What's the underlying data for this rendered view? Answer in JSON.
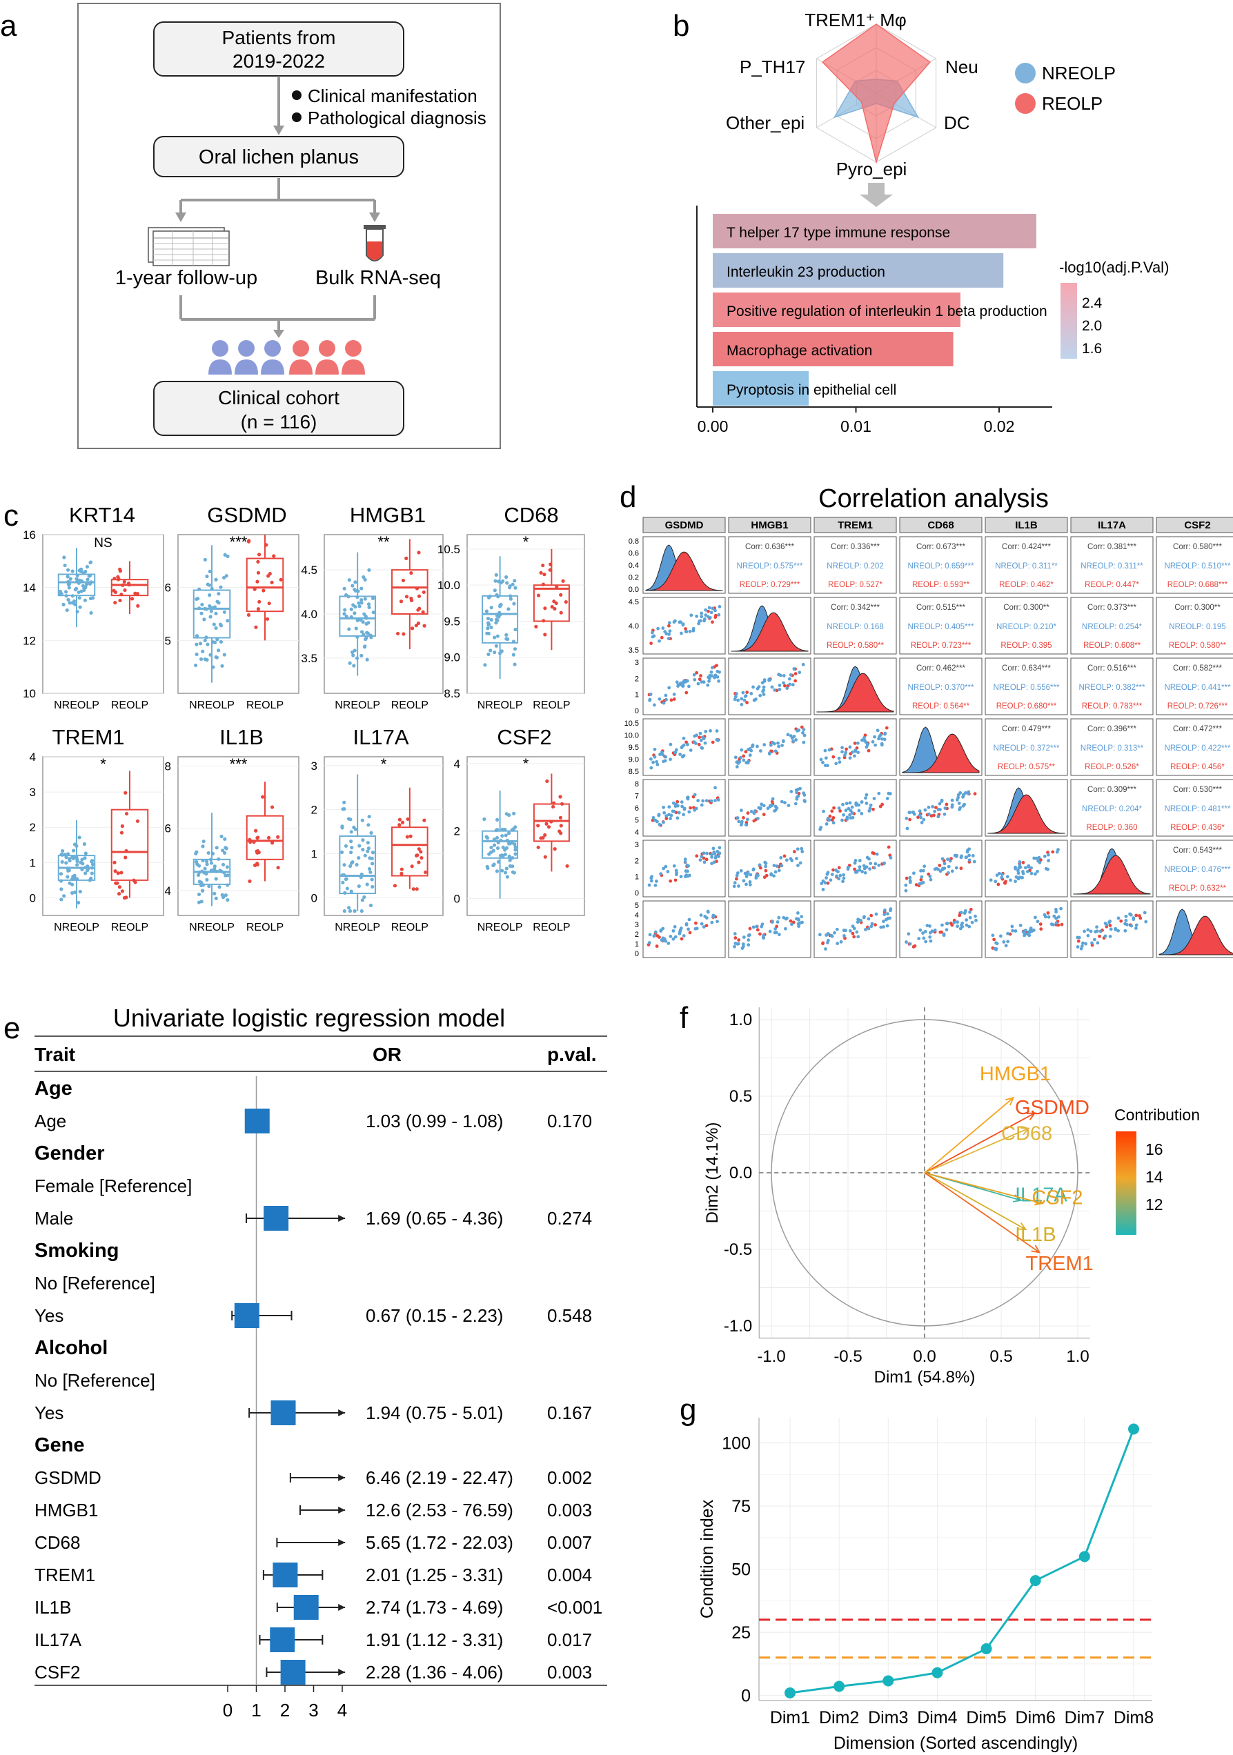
{
  "panel_labels": {
    "a": "a",
    "b": "b",
    "c": "c",
    "d": "d",
    "e": "e",
    "f": "f",
    "g": "g"
  },
  "flow": {
    "box1": [
      "Patients  from",
      "2019-2022"
    ],
    "bullets": [
      "Clinical manifestation",
      "Pathological diagnosis"
    ],
    "box2": "Oral lichen planus",
    "followup": "1-year  follow-up",
    "bulk": "Bulk RNA-seq",
    "box3": [
      "Clinical cohort",
      "(n = 116)"
    ],
    "colors": {
      "blue": "#8B9BD9",
      "red": "#F07373"
    }
  },
  "radar": {
    "axes": [
      "TREM1⁺ Mφ",
      "Neu",
      "DC",
      "Pyro_epi",
      "Other_epi",
      "P_TH17"
    ],
    "legend": [
      {
        "name": "NREOLP",
        "color": "#7FB3DB"
      },
      {
        "name": "REOLP",
        "color": "#F26B6B"
      }
    ],
    "NREOLP": [
      0.2,
      0.35,
      0.7,
      0.15,
      0.7,
      0.35
    ],
    "REOLP": [
      1.0,
      0.9,
      0.3,
      1.0,
      0.25,
      0.9
    ]
  },
  "chart_data": [
    {
      "id": "b",
      "type": "bar",
      "orientation": "horizontal",
      "categories": [
        "T helper 17 type immune response",
        "Interleukin 23 production",
        "Positive regulation of interleukin 1 beta production",
        "Macrophage activation",
        "Pyroptosis in epithelial cell"
      ],
      "values": [
        0.0226,
        0.0203,
        0.0173,
        0.0168,
        0.0067
      ],
      "fill": [
        "#D4A3B0",
        "#A9BCD8",
        "#EE8A8F",
        "#EC7C80",
        "#93C4E6"
      ],
      "xlim": [
        0,
        0.025
      ],
      "xticks": [
        "0.00",
        "0.01",
        "0.02"
      ],
      "legend_title": "-log10(adj.P.Val)",
      "legend_ticks": [
        "2.4",
        "2.0",
        "1.6"
      ]
    },
    {
      "id": "c",
      "type": "boxplot",
      "groups": [
        "NREOLP",
        "REOLP"
      ],
      "colors": {
        "NREOLP": "#6BAED6",
        "REOLP": "#E8453C"
      },
      "genes": [
        {
          "name": "KRT14",
          "sig": "NS",
          "ylim": [
            10,
            16
          ],
          "yticks": [
            "10",
            "12",
            "14",
            "16"
          ],
          "nre": {
            "q1": 13.7,
            "med": 14.2,
            "q3": 14.5,
            "lo": 12.5,
            "hi": 15.5
          },
          "re": {
            "q1": 13.7,
            "med": 14.1,
            "q3": 14.3,
            "lo": 13.0,
            "hi": 15.0
          }
        },
        {
          "name": "GSDMD",
          "sig": "***",
          "ylim": [
            4,
            7
          ],
          "yticks": [
            "5",
            "6"
          ],
          "nre": {
            "q1": 5.05,
            "med": 5.6,
            "q3": 5.95,
            "lo": 4.2,
            "hi": 6.8
          },
          "re": {
            "q1": 5.55,
            "med": 6.0,
            "q3": 6.55,
            "lo": 5.0,
            "hi": 7.0
          }
        },
        {
          "name": "HMGB1",
          "sig": "**",
          "ylim": [
            3.1,
            4.9
          ],
          "yticks": [
            "3.5",
            "4.0",
            "4.5"
          ],
          "nre": {
            "q1": 3.75,
            "med": 3.95,
            "q3": 4.2,
            "lo": 3.3,
            "hi": 4.7
          },
          "re": {
            "q1": 4.0,
            "med": 4.3,
            "q3": 4.5,
            "lo": 3.6,
            "hi": 4.85
          }
        },
        {
          "name": "CD68",
          "sig": "*",
          "ylim": [
            8.5,
            10.7
          ],
          "yticks": [
            "8.5",
            "9.0",
            "9.5",
            "10.0",
            "10.5"
          ],
          "nre": {
            "q1": 9.2,
            "med": 9.6,
            "q3": 9.85,
            "lo": 8.7,
            "hi": 10.4
          },
          "re": {
            "q1": 9.5,
            "med": 9.95,
            "q3": 10.0,
            "lo": 9.1,
            "hi": 10.5
          }
        },
        {
          "name": "TREM1",
          "sig": "*",
          "ylim": [
            -0.5,
            4
          ],
          "yticks": [
            "0",
            "1",
            "2",
            "3",
            "4"
          ],
          "nre": {
            "q1": 0.5,
            "med": 0.85,
            "q3": 1.2,
            "lo": -0.3,
            "hi": 2.2
          },
          "re": {
            "q1": 0.5,
            "med": 1.3,
            "q3": 2.5,
            "lo": 0,
            "hi": 3.6
          }
        },
        {
          "name": "IL1B",
          "sig": "***",
          "ylim": [
            3.2,
            8.3
          ],
          "yticks": [
            "4",
            "6",
            "8"
          ],
          "nre": {
            "q1": 4.2,
            "med": 4.6,
            "q3": 5.0,
            "lo": 3.5,
            "hi": 6.5
          },
          "re": {
            "q1": 5.0,
            "med": 5.6,
            "q3": 6.4,
            "lo": 4.3,
            "hi": 7.5
          }
        },
        {
          "name": "IL17A",
          "sig": "*",
          "ylim": [
            -0.4,
            3.2
          ],
          "yticks": [
            "0",
            "1",
            "2",
            "3"
          ],
          "nre": {
            "q1": 0.1,
            "med": 0.5,
            "q3": 1.4,
            "lo": -0.3,
            "hi": 2.8
          },
          "re": {
            "q1": 0.5,
            "med": 1.2,
            "q3": 1.6,
            "lo": 0.2,
            "hi": 2.5
          }
        },
        {
          "name": "CSF2",
          "sig": "*",
          "ylim": [
            -0.5,
            4.2
          ],
          "yticks": [
            "0",
            "2",
            "4"
          ],
          "nre": {
            "q1": 1.2,
            "med": 1.7,
            "q3": 2.0,
            "lo": 0,
            "hi": 3.2
          },
          "re": {
            "q1": 1.7,
            "med": 2.3,
            "q3": 2.8,
            "lo": 0.8,
            "hi": 3.7
          }
        }
      ]
    },
    {
      "id": "d",
      "type": "correlation_matrix",
      "title": "Correlation analysis",
      "vars": [
        "GSDMD",
        "HMGB1",
        "TREM1",
        "CD68",
        "IL1B",
        "IL17A",
        "CSF2"
      ],
      "corr": {
        "0-1": [
          "Corr: 0.636***",
          "NREOLP: 0.575***",
          "REOLP: 0.729***"
        ],
        "0-2": [
          "Corr: 0.336***",
          "NREOLP: 0.202",
          "REOLP: 0.527*"
        ],
        "0-3": [
          "Corr: 0.673***",
          "NREOLP: 0.659***",
          "REOLP: 0.593**"
        ],
        "0-4": [
          "Corr: 0.424***",
          "NREOLP: 0.311**",
          "REOLP: 0.462*"
        ],
        "0-5": [
          "Corr: 0.381***",
          "NREOLP: 0.311**",
          "REOLP: 0.447*"
        ],
        "0-6": [
          "Corr: 0.580***",
          "NREOLP: 0.510***",
          "REOLP: 0.688***"
        ],
        "1-2": [
          "Corr: 0.342***",
          "NREOLP: 0.168",
          "REOLP: 0.580**"
        ],
        "1-3": [
          "Corr: 0.515***",
          "NREOLP: 0.405***",
          "REOLP: 0.723***"
        ],
        "1-4": [
          "Corr: 0.300**",
          "NREOLP: 0.210*",
          "REOLP: 0.395"
        ],
        "1-5": [
          "Corr: 0.373***",
          "NREOLP: 0.254*",
          "REOLP: 0.608**"
        ],
        "1-6": [
          "Corr: 0.300**",
          "NREOLP: 0.195",
          "REOLP: 0.580**"
        ],
        "2-3": [
          "Corr: 0.462***",
          "NREOLP: 0.370***",
          "REOLP: 0.564**"
        ],
        "2-4": [
          "Corr: 0.634***",
          "NREOLP: 0.556***",
          "REOLP: 0.680***"
        ],
        "2-5": [
          "Corr: 0.516***",
          "NREOLP: 0.382***",
          "REOLP: 0.783***"
        ],
        "2-6": [
          "Corr: 0.582***",
          "NREOLP: 0.441***",
          "REOLP: 0.726***"
        ],
        "3-4": [
          "Corr: 0.479***",
          "NREOLP: 0.372***",
          "REOLP: 0.575**"
        ],
        "3-5": [
          "Corr: 0.396***",
          "NREOLP: 0.313**",
          "REOLP: 0.526*"
        ],
        "3-6": [
          "Corr: 0.472***",
          "NREOLP: 0.422***",
          "REOLP: 0.456*"
        ],
        "4-5": [
          "Corr: 0.309***",
          "NREOLP: 0.204*",
          "REOLP: 0.360"
        ],
        "4-6": [
          "Corr: 0.530***",
          "NREOLP: 0.481***",
          "REOLP: 0.436*"
        ],
        "5-6": [
          "Corr: 0.543***",
          "NREOLP: 0.476***",
          "REOLP: 0.632**"
        ]
      },
      "yticks": [
        [
          "0.8",
          "0.6",
          "0.4",
          "0.2",
          "0.0"
        ],
        [
          "4.5",
          "4.0",
          "3.5"
        ],
        [
          "3",
          "2",
          "1",
          "0"
        ],
        [
          "10.5",
          "10.0",
          "9.5",
          "9.0",
          "8.5"
        ],
        [
          "8",
          "7",
          "6",
          "5",
          "4"
        ],
        [
          "3",
          "2",
          "1",
          "0"
        ],
        [
          "5",
          "4",
          "3",
          "2",
          "1",
          "0"
        ]
      ]
    },
    {
      "id": "e",
      "type": "forest",
      "title": "Univariate logistic regression model",
      "headers": {
        "trait": "Trait",
        "or": "OR",
        "p": "p.val."
      },
      "rows": [
        {
          "label": "Age",
          "bold": true
        },
        {
          "label": "Age",
          "or": 1.03,
          "lo": 0.99,
          "hi": 1.08,
          "text": "1.03 (0.99 - 1.08)",
          "p": "0.170",
          "size": 1.0
        },
        {
          "label": "Gender",
          "bold": true
        },
        {
          "label": "Female [Reference]"
        },
        {
          "label": "Male",
          "or": 1.69,
          "lo": 0.65,
          "hi": 4.36,
          "text": "1.69 (0.65 - 4.36)",
          "p": "0.274",
          "size": 1.0,
          "arrow": true
        },
        {
          "label": "Smoking",
          "bold": true
        },
        {
          "label": "No [Reference]"
        },
        {
          "label": "Yes",
          "or": 0.67,
          "lo": 0.15,
          "hi": 2.23,
          "text": "0.67 (0.15 - 2.23)",
          "p": "0.548",
          "size": 1.0
        },
        {
          "label": "Alcohol",
          "bold": true
        },
        {
          "label": "No [Reference]"
        },
        {
          "label": "Yes",
          "or": 1.94,
          "lo": 0.75,
          "hi": 5.01,
          "text": "1.94 (0.75 - 5.01)",
          "p": "0.167",
          "size": 1.0,
          "arrow": true
        },
        {
          "label": "Gene",
          "bold": true
        },
        {
          "label": "GSDMD",
          "or": 6.46,
          "lo": 2.19,
          "hi": 22.47,
          "text": "6.46 (2.19 - 22.47)",
          "p": "0.002",
          "size": 0,
          "arrow": true
        },
        {
          "label": "HMGB1",
          "or": 12.6,
          "lo": 2.53,
          "hi": 76.59,
          "text": "12.6 (2.53 - 76.59)",
          "p": "0.003",
          "size": 0,
          "arrow": true
        },
        {
          "label": "CD68",
          "or": 5.65,
          "lo": 1.72,
          "hi": 22.03,
          "text": "5.65 (1.72 - 22.03)",
          "p": "0.007",
          "size": 0,
          "arrow": true
        },
        {
          "label": "TREM1",
          "or": 2.01,
          "lo": 1.25,
          "hi": 3.31,
          "text": "2.01 (1.25 - 3.31)",
          "p": "0.004",
          "size": 1.0
        },
        {
          "label": "IL1B",
          "or": 2.74,
          "lo": 1.73,
          "hi": 4.69,
          "text": "2.74 (1.73 - 4.69)",
          "p": "<0.001",
          "size": 1.0,
          "arrow": true
        },
        {
          "label": "IL17A",
          "or": 1.91,
          "lo": 1.12,
          "hi": 3.31,
          "text": "1.91 (1.12 - 3.31)",
          "p": "0.017",
          "size": 1.0
        },
        {
          "label": "CSF2",
          "or": 2.28,
          "lo": 1.36,
          "hi": 4.06,
          "text": "2.28 (1.36 - 4.06)",
          "p": "0.003",
          "size": 1.0,
          "arrow": true
        }
      ],
      "xlim": [
        0,
        4
      ],
      "xticks": [
        "0",
        "1",
        "2",
        "3",
        "4"
      ]
    },
    {
      "id": "f",
      "type": "pca_biplot",
      "xlabel": "Dim1 (54.8%)",
      "ylabel": "Dim2 (14.1%)",
      "xlim": [
        -1.05,
        1.05
      ],
      "ylim": [
        -1.05,
        1.05
      ],
      "xticks": [
        "-1.0",
        "-0.5",
        "0.0",
        "0.5",
        "1.0"
      ],
      "yticks": [
        "1.0",
        "0.5",
        "0.0",
        "-0.5",
        "-1.0"
      ],
      "vectors": [
        {
          "name": "HMGB1",
          "x": 0.58,
          "y": 0.49,
          "color": "#F5A21D"
        },
        {
          "name": "GSDMD",
          "x": 0.72,
          "y": 0.39,
          "color": "#F24F1E"
        },
        {
          "name": "CD68",
          "x": 0.68,
          "y": 0.29,
          "color": "#E0B43A"
        },
        {
          "name": "IL17A",
          "x": 0.63,
          "y": -0.18,
          "color": "#3FB6A8"
        },
        {
          "name": "CSF2",
          "x": 0.77,
          "y": -0.2,
          "color": "#E8A21F"
        },
        {
          "name": "IL1B",
          "x": 0.66,
          "y": -0.37,
          "color": "#D6B028"
        },
        {
          "name": "TREM1",
          "x": 0.75,
          "y": -0.52,
          "color": "#F06A20"
        }
      ],
      "legend_title": "Contribution",
      "legend_ticks": [
        "16",
        "14",
        "12"
      ]
    },
    {
      "id": "g",
      "type": "line",
      "categories": [
        "Dim1",
        "Dim2",
        "Dim3",
        "Dim4",
        "Dim5",
        "Dim6",
        "Dim7",
        "Dim8"
      ],
      "values": [
        1.0,
        3.6,
        5.8,
        9.0,
        18.5,
        45.5,
        55.0,
        105.5
      ],
      "hlines": [
        {
          "y": 30,
          "color": "#E4262B"
        },
        {
          "y": 15,
          "color": "#F59A23"
        }
      ],
      "ylim": [
        -2,
        110
      ],
      "yticks": [
        "0",
        "25",
        "50",
        "75",
        "100"
      ],
      "xlabel": "Dimension (Sorted ascendingly)",
      "ylabel": "Condition index",
      "color": "#17B3BD"
    }
  ]
}
